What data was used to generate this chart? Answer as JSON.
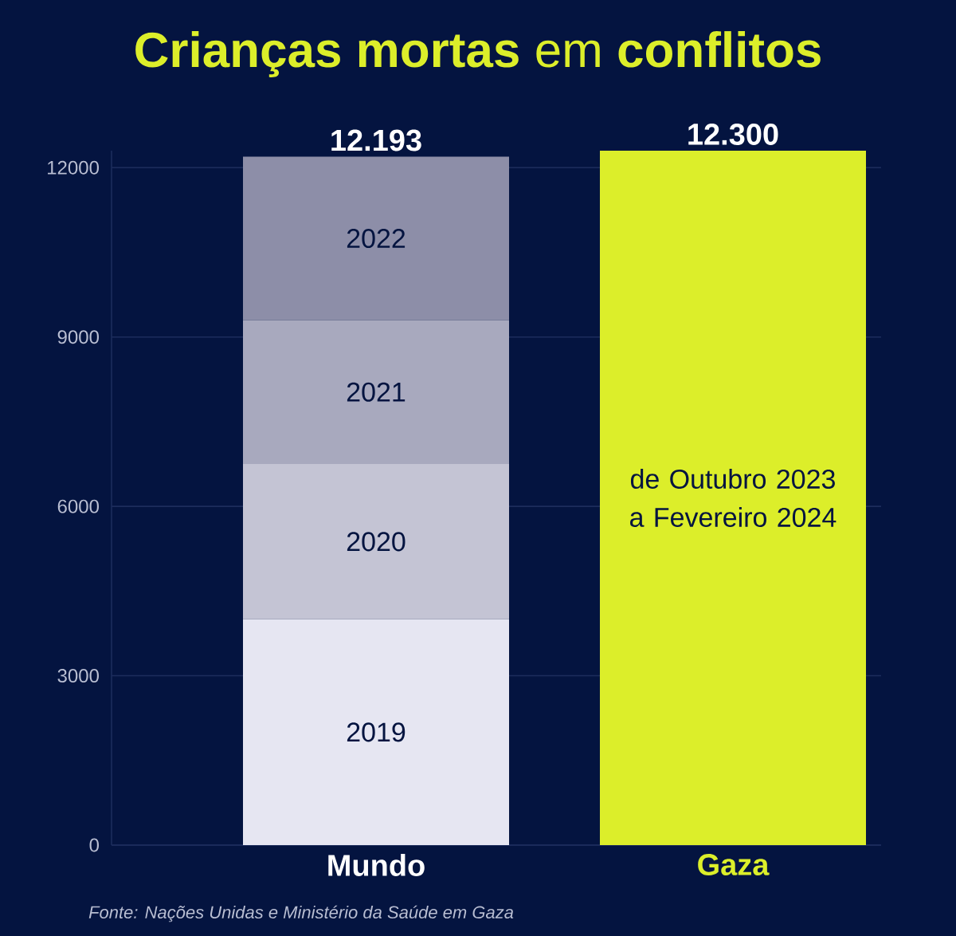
{
  "chart_data": {
    "type": "bar",
    "title": "**Crianças mortas** em **conflitos**",
    "categories": [
      "Mundo",
      "Gaza"
    ],
    "stacked": true,
    "series": [
      {
        "name": "2019",
        "color": "#e6e6f2",
        "values": [
          4000,
          null
        ]
      },
      {
        "name": "2020",
        "color": "#c4c4d4",
        "values": [
          2750,
          null
        ]
      },
      {
        "name": "2021",
        "color": "#a8a9be",
        "values": [
          2550,
          null
        ]
      },
      {
        "name": "2022",
        "color": "#8d8ea8",
        "values": [
          2893,
          null
        ]
      },
      {
        "name": "de Outubro 2023 a Fevereiro 2024",
        "color": "#dcee2a",
        "values": [
          null,
          12300
        ]
      }
    ],
    "totals": [
      "12.193",
      "12.300"
    ],
    "ylim": [
      0,
      12300
    ],
    "yticks": [
      0,
      3000,
      6000,
      9000,
      12000
    ],
    "grid": "y",
    "annotations": [
      "Fonte:  Nações Unidas e Ministério da Saúde em Gaza"
    ]
  }
}
